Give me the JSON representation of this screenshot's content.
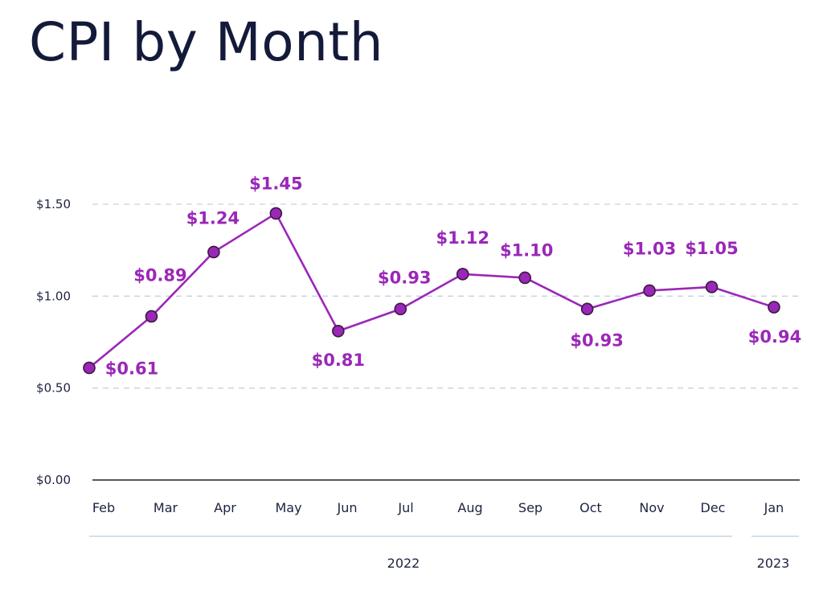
{
  "title": "CPI by Month",
  "chart_data": {
    "type": "line",
    "title": "CPI by Month",
    "categories": [
      "Feb",
      "Mar",
      "Apr",
      "May",
      "Jun",
      "Jul",
      "Aug",
      "Sep",
      "Oct",
      "Nov",
      "Dec",
      "Jan"
    ],
    "values": [
      0.61,
      0.89,
      1.24,
      1.45,
      0.81,
      0.93,
      1.12,
      1.1,
      0.93,
      1.03,
      1.05,
      0.94
    ],
    "labels": [
      "$0.61",
      "$0.89",
      "$1.24",
      "$1.45",
      "$0.81",
      "$0.93",
      "$1.12",
      "$1.10",
      "$0.93",
      "$1.03",
      "$1.05",
      "$0.94"
    ],
    "label_positions": [
      "below",
      "above",
      "above",
      "above",
      "below",
      "above",
      "above",
      "above",
      "below",
      "above",
      "above",
      "below"
    ],
    "y_ticks": [
      0,
      0.5,
      1.0,
      1.5
    ],
    "y_tick_labels": [
      "$0.00",
      "$0.50",
      "$1.00",
      "$1.50"
    ],
    "ylim": [
      0,
      1.5
    ],
    "year_groups": [
      {
        "label": "2022",
        "start": 0,
        "end": 10
      },
      {
        "label": "2023",
        "start": 11,
        "end": 11
      }
    ],
    "grid": true,
    "line_color": "#9b27b8",
    "marker_color": "#9b27b8",
    "marker_edge_color": "#3a1a40",
    "grid_color": "#c5d2e0",
    "axis_color": "#222222",
    "label_color": "#9b27b8"
  }
}
